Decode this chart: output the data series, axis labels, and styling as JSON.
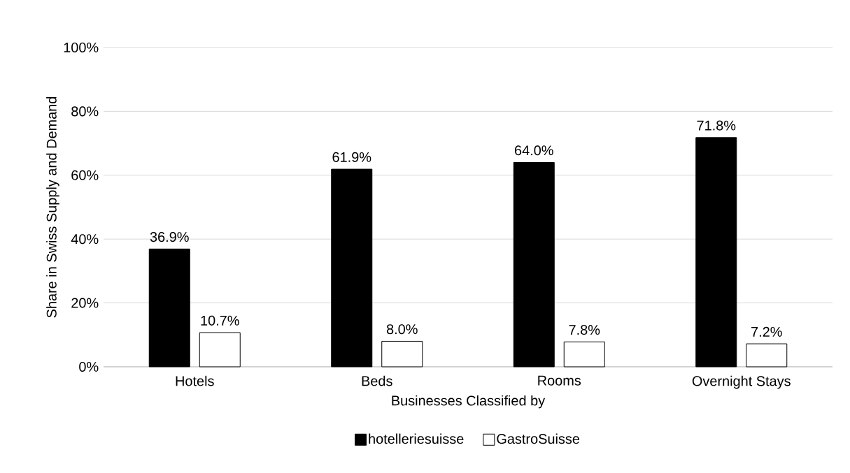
{
  "chart_data": {
    "type": "bar",
    "xlabel": "Businesses Classified by",
    "ylabel": "Share in Swiss Supply and Demand",
    "categories": [
      "Hotels",
      "Beds",
      "Rooms",
      "Overnight Stays"
    ],
    "series": [
      {
        "name": "hotelleriesuisse",
        "color": "#000000",
        "values": [
          36.9,
          61.9,
          64.0,
          71.8
        ],
        "value_labels": [
          "36.9%",
          "61.9%",
          "64.0%",
          "71.8%"
        ]
      },
      {
        "name": "GastroSuisse",
        "color": "#ffffff",
        "values": [
          10.7,
          8.0,
          7.8,
          7.2
        ],
        "value_labels": [
          "10.7%",
          "8.0%",
          "7.8%",
          "7.2%"
        ]
      }
    ],
    "ylim": [
      0,
      100
    ],
    "yticks": [
      {
        "value": 0,
        "label": "0%"
      },
      {
        "value": 20,
        "label": "20%"
      },
      {
        "value": 40,
        "label": "40%"
      },
      {
        "value": 60,
        "label": "60%"
      },
      {
        "value": 80,
        "label": "80%"
      },
      {
        "value": 100,
        "label": "100%"
      }
    ],
    "grid": "y",
    "legend": "bottom"
  }
}
